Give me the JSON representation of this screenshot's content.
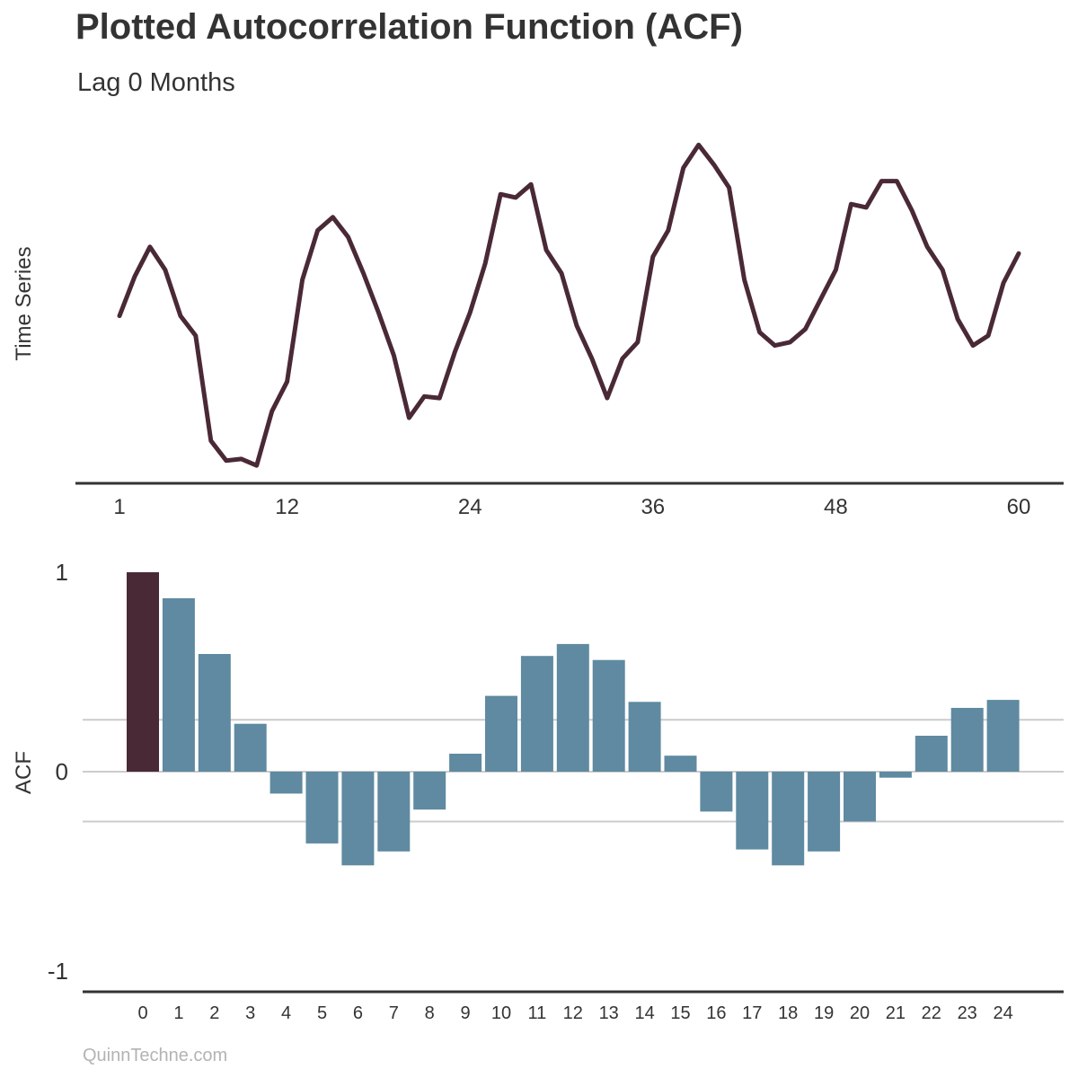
{
  "title": "Plotted Autocorrelation Function (ACF)",
  "subtitle": "Lag 0 Months",
  "footer": "QuinnTechne.com",
  "colors": {
    "line": "#4a2936",
    "highlight_bar": "#4a2936",
    "bar": "#5f8aa1",
    "axis": "#333333",
    "gridline": "#cccccc",
    "footer": "#b3b3b3"
  },
  "chart_data": [
    {
      "type": "line",
      "title": "",
      "xlabel": "",
      "ylabel": "Time Series",
      "x_ticks": [
        1,
        12,
        24,
        36,
        48,
        60
      ],
      "xlim": [
        1,
        60
      ],
      "y_axis_shown": false,
      "grid": false,
      "x": [
        1,
        2,
        3,
        4,
        5,
        6,
        7,
        8,
        9,
        10,
        11,
        12,
        13,
        14,
        15,
        16,
        17,
        18,
        19,
        20,
        21,
        22,
        23,
        24,
        25,
        26,
        27,
        28,
        29,
        30,
        31,
        32,
        33,
        34,
        35,
        36,
        37,
        38,
        39,
        40,
        41,
        42,
        43,
        44,
        45,
        46,
        47,
        48,
        49,
        50,
        51,
        52,
        53,
        54,
        55,
        56,
        57,
        58,
        59,
        60
      ],
      "values": [
        46,
        58,
        67,
        60,
        46,
        40,
        8,
        2,
        2.5,
        0.5,
        17,
        26,
        57,
        72,
        76,
        70,
        59,
        47,
        34,
        15,
        21.5,
        21,
        35,
        47,
        62,
        83,
        82,
        86,
        66,
        59,
        43,
        33,
        21,
        33,
        38,
        64,
        72,
        91,
        98,
        92,
        85,
        57,
        41,
        37,
        38,
        42,
        51,
        60,
        80,
        79,
        87,
        87,
        78,
        67,
        60,
        45,
        37,
        40,
        56,
        65
      ]
    },
    {
      "type": "bar",
      "title": "",
      "xlabel": "",
      "ylabel": "ACF",
      "y_ticks": [
        -1,
        0,
        1
      ],
      "ylim": [
        -1,
        1
      ],
      "reference_lines": [
        0.26,
        0,
        -0.25
      ],
      "highlighted_lag": 0,
      "categories": [
        "0",
        "1",
        "2",
        "3",
        "4",
        "5",
        "6",
        "7",
        "8",
        "9",
        "10",
        "11",
        "12",
        "13",
        "14",
        "15",
        "16",
        "17",
        "18",
        "19",
        "20",
        "21",
        "22",
        "23",
        "24"
      ],
      "values": [
        1.0,
        0.87,
        0.59,
        0.24,
        -0.11,
        -0.36,
        -0.47,
        -0.4,
        -0.19,
        0.09,
        0.38,
        0.58,
        0.64,
        0.56,
        0.35,
        0.08,
        -0.2,
        -0.39,
        -0.47,
        -0.4,
        -0.25,
        -0.03,
        0.18,
        0.32,
        0.36
      ]
    }
  ]
}
